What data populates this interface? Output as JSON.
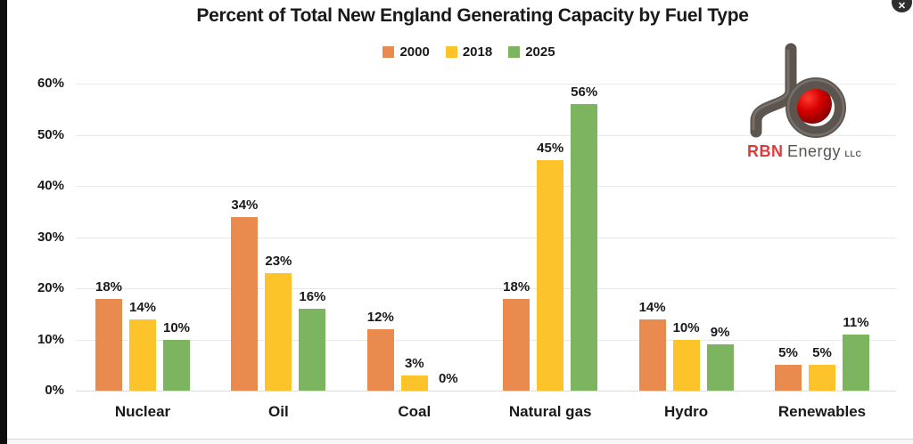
{
  "window": {
    "close_glyph": "✕"
  },
  "logo": {
    "brand_primary": "RBN",
    "brand_secondary": "Energy",
    "brand_suffix": "LLC",
    "colors": {
      "pipe": "#5b544f",
      "pipe_highlight": "#837b74",
      "ball_bright": "#ff3b2f",
      "ball_mid": "#d40000",
      "ball_dark": "#6e0000",
      "brand_primary": "#e03a3c",
      "brand_secondary": "#5a5550"
    }
  },
  "chart_data": {
    "type": "bar",
    "title": "Percent of Total New England Generating Capacity by Fuel Type",
    "categories": [
      "Nuclear",
      "Oil",
      "Coal",
      "Natural gas",
      "Hydro",
      "Renewables"
    ],
    "series": [
      {
        "name": "2000",
        "color": "#e98b4e",
        "values": [
          18,
          34,
          12,
          18,
          14,
          5
        ],
        "labels": [
          "18%",
          "34%",
          "12%",
          "18%",
          "14%",
          "5%"
        ]
      },
      {
        "name": "2018",
        "color": "#fdc32b",
        "values": [
          14,
          23,
          3,
          45,
          10,
          5
        ],
        "labels": [
          "14%",
          "23%",
          "3%",
          "45%",
          "10%",
          "5%"
        ]
      },
      {
        "name": "2025",
        "color": "#7cb45f",
        "values": [
          10,
          16,
          0,
          56,
          9,
          11
        ],
        "labels": [
          "10%",
          "16%",
          "0%",
          "56%",
          "9%",
          "11%"
        ]
      }
    ],
    "xlabel": "",
    "ylabel": "",
    "ylim": [
      0,
      60
    ],
    "ytick_labels": [
      "0%",
      "10%",
      "20%",
      "30%",
      "40%",
      "50%",
      "60%"
    ],
    "grid": true,
    "legend_position": "top-center"
  }
}
